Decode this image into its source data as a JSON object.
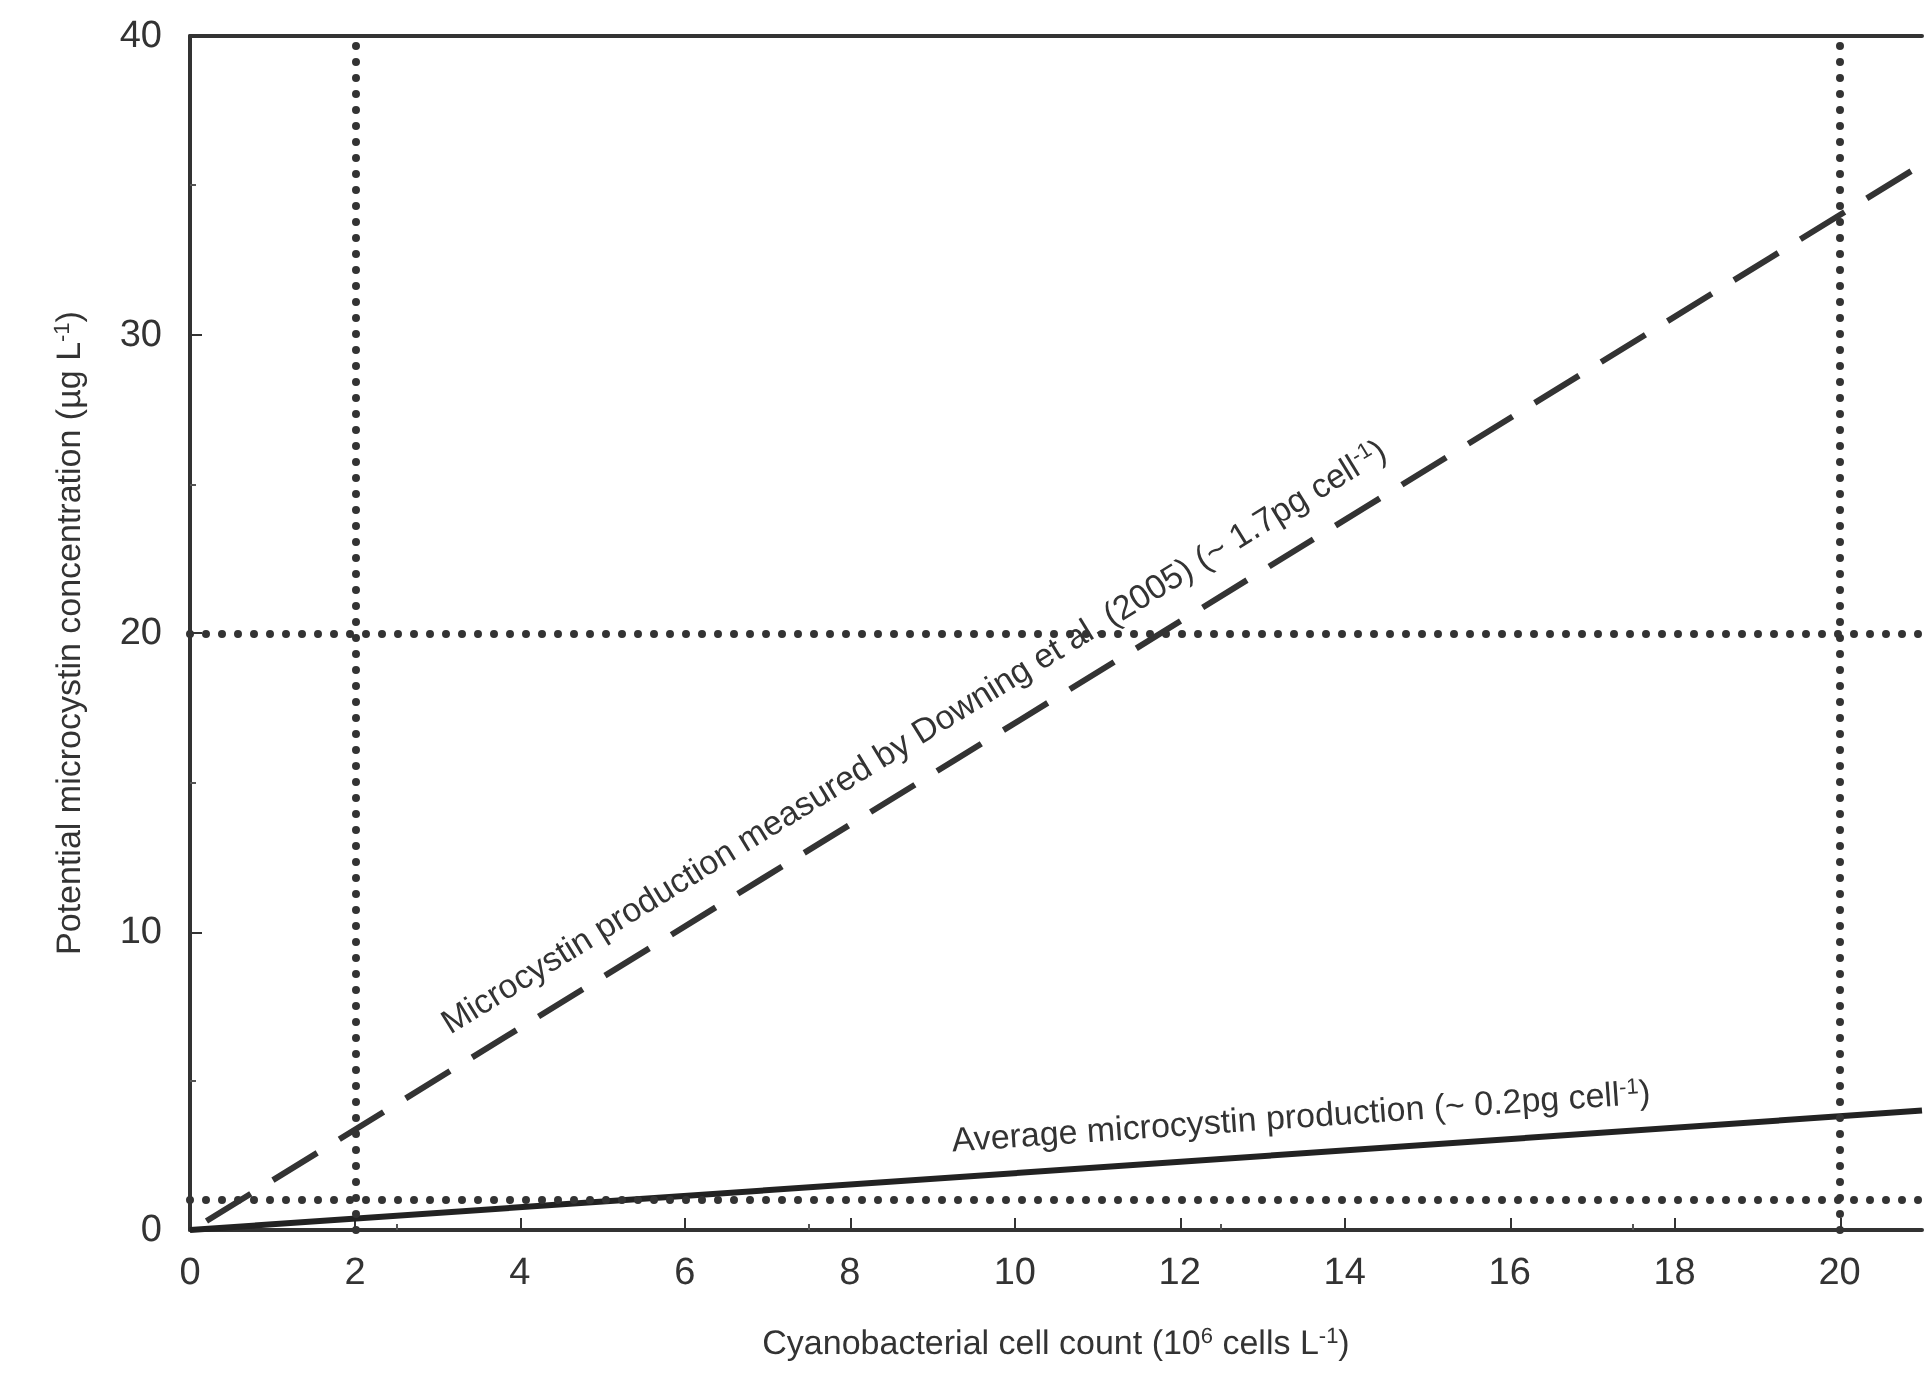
{
  "chart_data": {
    "type": "line",
    "xlabel": "Cyanobacterial cell count (10$^{6}$ cells L$^{-1}$)",
    "ylabel": "Potential microcystin concentration (µg L$^{-1}$)",
    "xlim": [
      0,
      21
    ],
    "xticks": [
      0,
      2,
      4,
      6,
      8,
      10,
      12,
      14,
      16,
      18,
      20
    ],
    "ylim": [
      0,
      40
    ],
    "yticks": [
      0,
      10,
      20,
      30,
      40
    ],
    "marker": "none",
    "series": [
      {
        "color": "#333333",
        "line_style": "dashed",
        "x": [
          0.2,
          21
        ],
        "values": [
          0.3,
          35.7
        ]
      },
      {
        "color": "#222222",
        "line_style": "solid",
        "x": [
          0,
          21
        ],
        "values": [
          0,
          4
        ]
      }
    ],
    "ref_lines": [
      {
        "axis": "x",
        "value": 2,
        "color": "#333333",
        "line_style": "dotted"
      },
      {
        "axis": "x",
        "value": 20,
        "color": "#333333",
        "line_style": "dotted"
      },
      {
        "axis": "y",
        "value": 20,
        "color": "#333333",
        "line_style": "dotted"
      },
      {
        "axis": "y",
        "value": 1,
        "color": "#333333",
        "line_style": "dotted"
      }
    ],
    "annotations": [
      {
        "text": "Microcystin production measured by Downing et al. (2005) (~ 1.7pg cell$^{-1}$)",
        "x": 9,
        "y": 15.5
      },
      {
        "text": "Average microcystin production (~ 0.2pg cell$^{-1}$)",
        "x": 13.5,
        "y": 2.6
      }
    ]
  }
}
